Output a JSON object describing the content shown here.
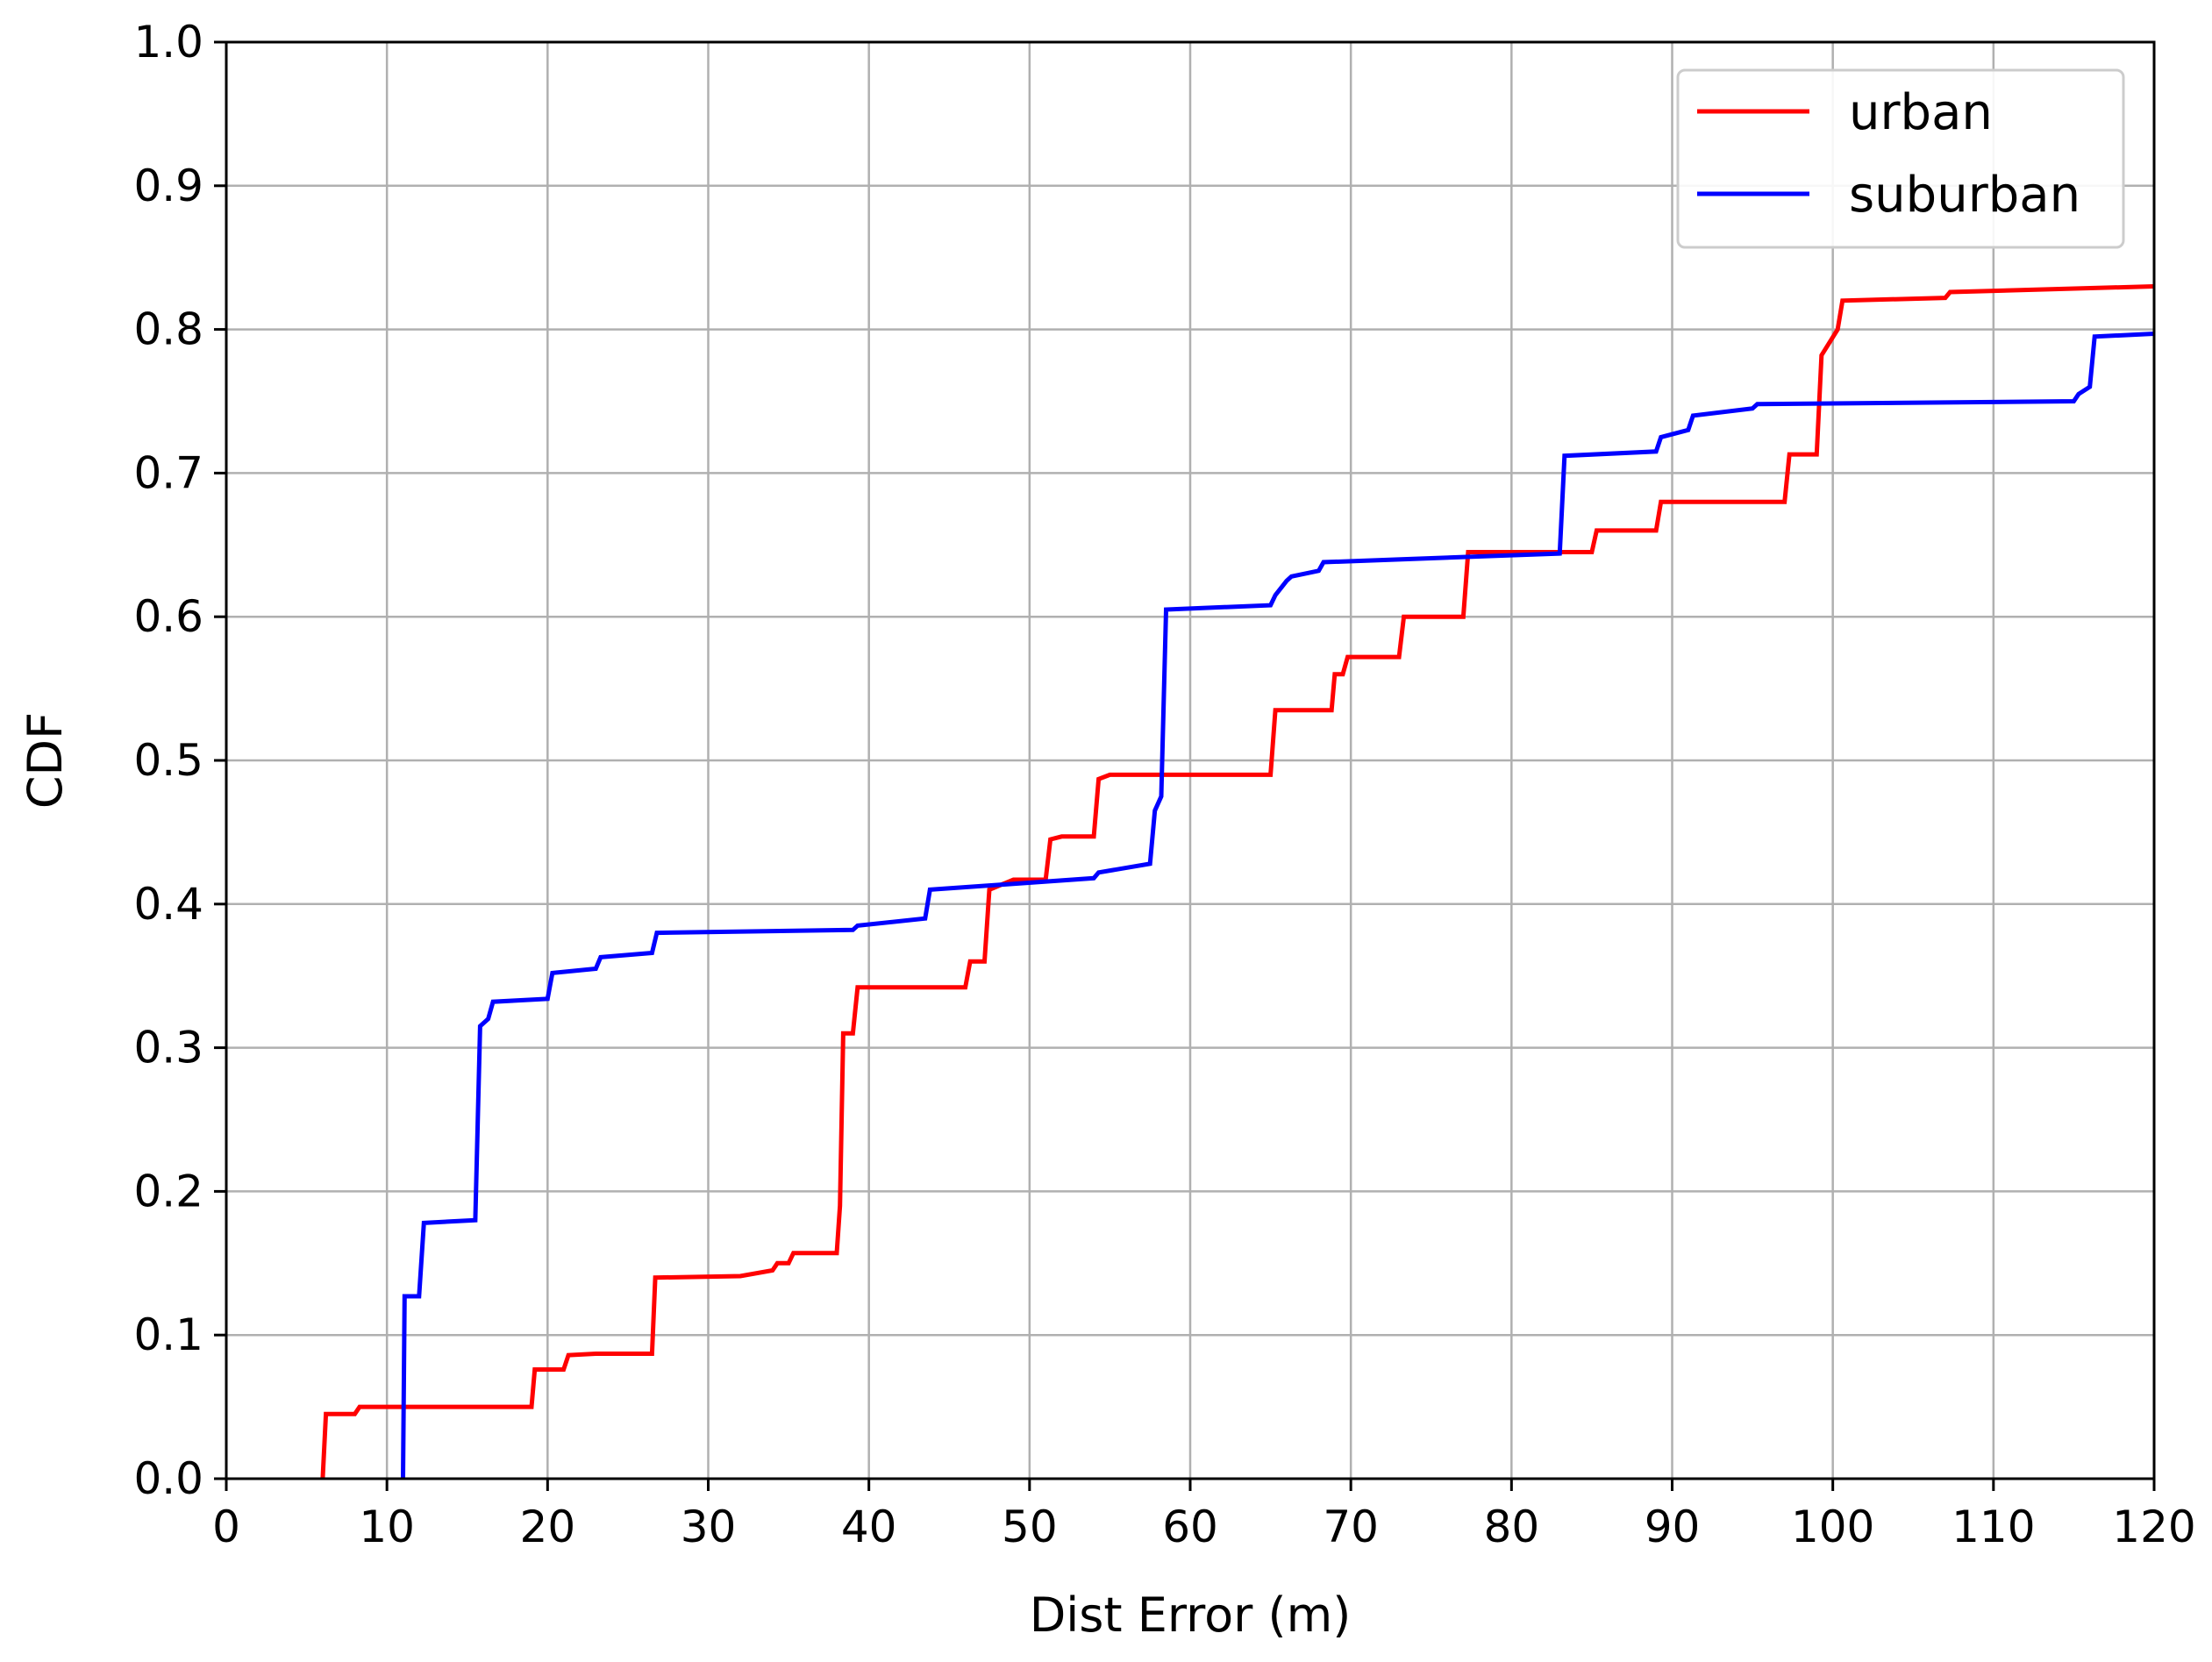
{
  "chart_data": {
    "type": "line",
    "step": true,
    "title": "",
    "xlabel": "Dist Error (m)",
    "ylabel": "CDF",
    "xlim": [
      0,
      120
    ],
    "ylim": [
      0,
      1.0
    ],
    "xticks": [
      0,
      10,
      20,
      30,
      40,
      50,
      60,
      70,
      80,
      90,
      100,
      110,
      120
    ],
    "yticks": [
      0.0,
      0.1,
      0.2,
      0.3,
      0.4,
      0.5,
      0.6,
      0.7,
      0.8,
      0.9,
      1.0
    ],
    "xtick_labels": [
      "0",
      "10",
      "20",
      "30",
      "40",
      "50",
      "60",
      "70",
      "80",
      "90",
      "100",
      "110",
      "120"
    ],
    "ytick_labels": [
      "0.0",
      "0.1",
      "0.2",
      "0.3",
      "0.4",
      "0.5",
      "0.6",
      "0.7",
      "0.8",
      "0.9",
      "1.0"
    ],
    "grid": true,
    "legend_position": "top-right",
    "series": [
      {
        "name": "urban",
        "color": "#ff0000",
        "x": [
          6.0,
          6.2,
          8.0,
          8.3,
          19.0,
          19.2,
          21.0,
          21.3,
          23.0,
          26.5,
          26.7,
          32.0,
          34.0,
          34.3,
          35.0,
          35.3,
          38.0,
          38.2,
          38.4,
          39.0,
          39.3,
          46.0,
          46.3,
          47.2,
          47.5,
          49.0,
          51.0,
          51.3,
          52.0,
          54.0,
          54.3,
          55.0,
          65.0,
          65.3,
          68.8,
          69.0,
          69.5,
          69.8,
          73.0,
          73.3,
          77.0,
          77.3,
          85.0,
          85.3,
          89.0,
          89.3,
          97.0,
          97.3,
          99.0,
          99.3,
          100.3,
          100.6,
          107.0,
          107.3,
          120.0
        ],
        "y": [
          0.0,
          0.045,
          0.045,
          0.05,
          0.05,
          0.076,
          0.076,
          0.086,
          0.087,
          0.087,
          0.14,
          0.141,
          0.145,
          0.15,
          0.15,
          0.157,
          0.157,
          0.19,
          0.31,
          0.31,
          0.342,
          0.342,
          0.36,
          0.36,
          0.41,
          0.417,
          0.417,
          0.445,
          0.447,
          0.447,
          0.487,
          0.49,
          0.49,
          0.535,
          0.535,
          0.56,
          0.56,
          0.572,
          0.572,
          0.6,
          0.6,
          0.645,
          0.645,
          0.66,
          0.66,
          0.68,
          0.68,
          0.713,
          0.713,
          0.782,
          0.8,
          0.82,
          0.822,
          0.826,
          0.83
        ]
      },
      {
        "name": "suburban",
        "color": "#0000ff",
        "x": [
          11.0,
          11.1,
          12.0,
          12.3,
          15.5,
          15.8,
          16.3,
          16.6,
          20.0,
          20.3,
          23.0,
          23.3,
          26.5,
          26.8,
          39.0,
          39.3,
          43.5,
          43.8,
          54.0,
          54.3,
          57.5,
          57.8,
          58.2,
          58.5,
          65.0,
          65.3,
          66.0,
          66.3,
          68.0,
          68.3,
          83.0,
          83.3,
          89.0,
          89.3,
          91.0,
          91.3,
          95.0,
          95.3,
          115.0,
          115.3,
          116.0,
          116.3,
          120.0
        ],
        "y": [
          0.0,
          0.127,
          0.127,
          0.178,
          0.18,
          0.315,
          0.32,
          0.332,
          0.334,
          0.352,
          0.355,
          0.363,
          0.366,
          0.38,
          0.382,
          0.385,
          0.39,
          0.41,
          0.418,
          0.422,
          0.428,
          0.465,
          0.475,
          0.605,
          0.608,
          0.615,
          0.625,
          0.628,
          0.632,
          0.638,
          0.644,
          0.712,
          0.715,
          0.725,
          0.73,
          0.74,
          0.745,
          0.748,
          0.75,
          0.755,
          0.76,
          0.795,
          0.797
        ]
      }
    ]
  }
}
